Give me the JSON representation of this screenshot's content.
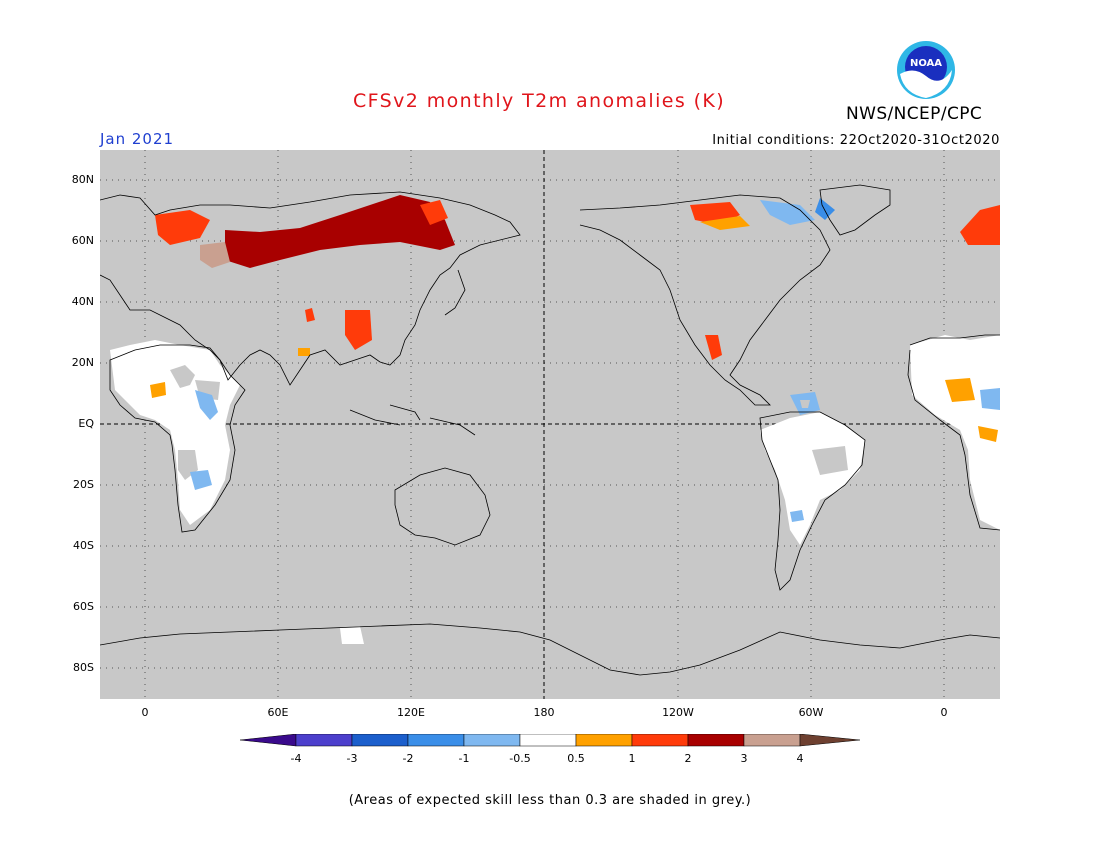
{
  "header": {
    "title": "CFSv2 monthly T2m anomalies (K)",
    "agency": "NWS/NCEP/CPC",
    "logo_text": "NOAA",
    "month": "Jan 2021",
    "initial_conditions": "Initial conditions: 22Oct2020-31Oct2020"
  },
  "map": {
    "background_color": "#c8c8c8",
    "lat_labels": [
      "80N",
      "60N",
      "40N",
      "20N",
      "EQ",
      "20S",
      "40S",
      "60S",
      "80S"
    ],
    "lon_labels": [
      "0",
      "60E",
      "120E",
      "180",
      "120W",
      "60W",
      "0"
    ]
  },
  "legend": {
    "tick_labels": [
      "-4",
      "-3",
      "-2",
      "-1",
      "-0.5",
      "0.5",
      "1",
      "2",
      "3",
      "4"
    ],
    "colors": [
      "#3a0a8c",
      "#4c3fcc",
      "#1c5fcc",
      "#3a8ee8",
      "#7fb8f0",
      "#ffffff",
      "#ffa100",
      "#ff3b0a",
      "#a80000",
      "#c9a090",
      "#6e4030"
    ]
  },
  "footer": {
    "note": "(Areas of expected skill less than 0.3 are shaded in grey.)"
  }
}
